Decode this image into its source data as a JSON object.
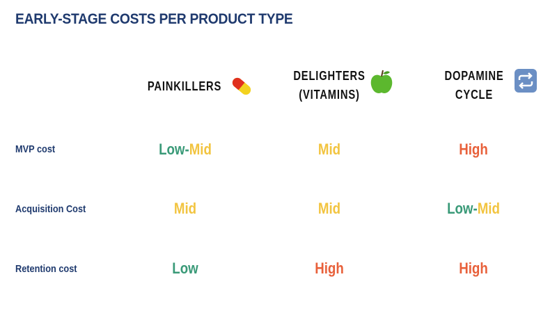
{
  "title": "EARLY-STAGE COSTS PER PRODUCT TYPE",
  "colors": {
    "low": "#3a9a78",
    "mid": "#f2c440",
    "high": "#e8603a",
    "navy": "#1f3a6e"
  },
  "columns": [
    {
      "lines": [
        "PAINKILLERS"
      ],
      "icon": "pill-icon"
    },
    {
      "lines": [
        "DELIGHTERS",
        "(VITAMINS)"
      ],
      "icon": "green-apple-icon"
    },
    {
      "lines": [
        "DOPAMINE",
        "CYCLE"
      ],
      "icon": "repeat-icon"
    }
  ],
  "rows": [
    {
      "label": "MVP cost",
      "cells": [
        [
          {
            "t": "Low-",
            "c": "low"
          },
          {
            "t": "Mid",
            "c": "mid"
          }
        ],
        [
          {
            "t": "Mid",
            "c": "mid"
          }
        ],
        [
          {
            "t": "High",
            "c": "high"
          }
        ]
      ]
    },
    {
      "label": "Acquisition Cost",
      "cells": [
        [
          {
            "t": "Mid",
            "c": "mid"
          }
        ],
        [
          {
            "t": "Mid",
            "c": "mid"
          }
        ],
        [
          {
            "t": "Low-",
            "c": "low"
          },
          {
            "t": "Mid",
            "c": "mid"
          }
        ]
      ]
    },
    {
      "label": "Retention cost",
      "cells": [
        [
          {
            "t": "Low",
            "c": "low"
          }
        ],
        [
          {
            "t": "High",
            "c": "high"
          }
        ],
        [
          {
            "t": "High",
            "c": "high"
          }
        ]
      ]
    }
  ]
}
